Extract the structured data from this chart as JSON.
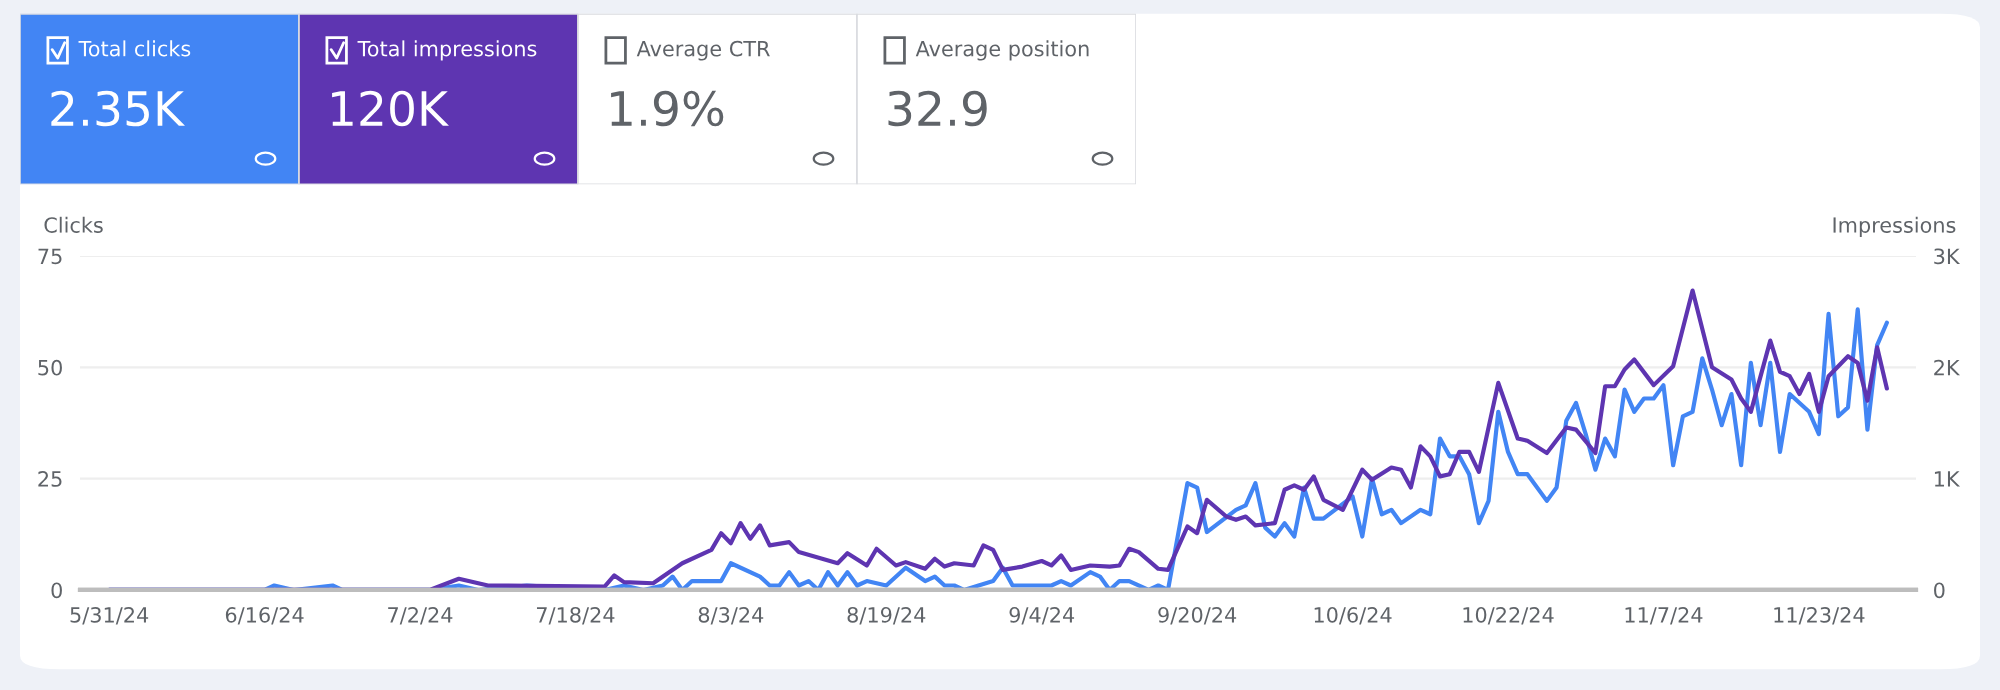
{
  "chart_data": [
    {
      "type": "other",
      "annotations": [
        "Total clicks",
        "2.35K",
        "Total impressions",
        "120K",
        "Average CTR",
        "1.9%",
        "Average position",
        "32.9"
      ],
      "colors": [
        "#4285f4",
        "#5e35b1",
        "#ffffff",
        "#ffffff"
      ]
    },
    {
      "type": "line",
      "ylabel": "Clicks",
      "y2label": "Impressions",
      "series": [
        {
          "color": "#4285f4",
          "x": [
            "2024-05-31",
            "2024-06-16",
            "2024-06-17",
            "2024-06-19",
            "2024-06-23",
            "2024-06-24",
            "2024-07-03",
            "2024-07-06",
            "2024-07-08",
            "2024-07-13",
            "2024-07-21",
            "2024-07-23",
            "2024-07-25",
            "2024-07-27",
            "2024-07-28",
            "2024-07-29",
            "2024-07-30",
            "2024-08-01",
            "2024-08-02",
            "2024-08-03",
            "2024-08-06",
            "2024-08-07",
            "2024-08-08",
            "2024-08-09",
            "2024-08-10",
            "2024-08-11",
            "2024-08-12",
            "2024-08-13",
            "2024-08-14",
            "2024-08-15",
            "2024-08-16",
            "2024-08-17",
            "2024-08-19",
            "2024-08-21",
            "2024-08-23",
            "2024-08-24",
            "2024-08-25",
            "2024-08-26",
            "2024-08-27",
            "2024-08-30",
            "2024-08-31",
            "2024-09-01",
            "2024-09-05",
            "2024-09-06",
            "2024-09-07",
            "2024-09-09",
            "2024-09-10",
            "2024-09-11",
            "2024-09-12",
            "2024-09-13",
            "2024-09-15",
            "2024-09-16",
            "2024-09-17",
            "2024-09-19",
            "2024-09-20",
            "2024-09-21",
            "2024-09-24",
            "2024-09-25",
            "2024-09-26",
            "2024-09-27",
            "2024-09-28",
            "2024-09-29",
            "2024-09-30",
            "2024-10-01",
            "2024-10-02",
            "2024-10-03",
            "2024-10-06",
            "2024-10-07",
            "2024-10-08",
            "2024-10-09",
            "2024-10-10",
            "2024-10-11",
            "2024-10-13",
            "2024-10-14",
            "2024-10-15",
            "2024-10-16",
            "2024-10-17",
            "2024-10-18",
            "2024-10-19",
            "2024-10-20",
            "2024-10-21",
            "2024-10-22",
            "2024-10-23",
            "2024-10-24",
            "2024-10-26",
            "2024-10-27",
            "2024-10-28",
            "2024-10-29",
            "2024-10-30",
            "2024-10-31",
            "2024-11-01",
            "2024-11-02",
            "2024-11-03",
            "2024-11-04",
            "2024-11-05",
            "2024-11-06",
            "2024-11-07",
            "2024-11-08",
            "2024-11-09",
            "2024-11-10",
            "2024-11-11",
            "2024-11-12",
            "2024-11-13",
            "2024-11-14",
            "2024-11-15",
            "2024-11-16",
            "2024-11-17",
            "2024-11-18",
            "2024-11-19",
            "2024-11-20",
            "2024-11-22",
            "2024-11-23",
            "2024-11-24",
            "2024-11-25",
            "2024-11-26",
            "2024-11-27",
            "2024-11-28",
            "2024-11-29",
            "2024-11-30"
          ],
          "values": [
            0,
            0,
            1,
            0,
            1,
            0,
            0,
            1,
            0,
            1,
            0,
            1,
            0,
            1,
            3,
            0,
            2,
            2,
            2,
            6,
            3,
            1,
            1,
            4,
            1,
            2,
            0,
            4,
            1,
            4,
            1,
            2,
            1,
            5,
            2,
            3,
            1,
            1,
            0,
            2,
            5,
            1,
            1,
            2,
            1,
            4,
            3,
            0,
            2,
            2,
            0,
            1,
            0,
            24,
            23,
            13,
            18,
            19,
            24,
            14,
            12,
            15,
            12,
            23,
            16,
            16,
            21,
            12,
            25,
            17,
            18,
            15,
            18,
            17,
            34,
            30,
            30,
            26,
            15,
            20,
            40,
            31,
            26,
            26,
            20,
            23,
            38,
            42,
            35,
            27,
            34,
            30,
            45,
            40,
            43,
            43,
            46,
            28,
            39,
            40,
            52,
            45,
            37,
            44,
            28,
            51,
            37,
            51,
            31,
            44,
            40,
            35,
            62,
            39,
            41,
            63,
            36,
            55,
            60
          ]
        },
        {
          "color": "#5e35b1",
          "axis": "y2",
          "x": [
            "2024-05-31",
            "2024-07-03",
            "2024-07-06",
            "2024-07-09",
            "2024-07-21",
            "2024-07-22",
            "2024-07-23",
            "2024-07-26",
            "2024-07-29",
            "2024-08-01",
            "2024-08-02",
            "2024-08-03",
            "2024-08-04",
            "2024-08-05",
            "2024-08-06",
            "2024-08-07",
            "2024-08-09",
            "2024-08-10",
            "2024-08-14",
            "2024-08-15",
            "2024-08-17",
            "2024-08-18",
            "2024-08-20",
            "2024-08-21",
            "2024-08-23",
            "2024-08-24",
            "2024-08-25",
            "2024-08-26",
            "2024-08-28",
            "2024-08-29",
            "2024-08-30",
            "2024-08-31",
            "2024-09-02",
            "2024-09-04",
            "2024-09-05",
            "2024-09-06",
            "2024-09-07",
            "2024-09-09",
            "2024-09-11",
            "2024-09-12",
            "2024-09-13",
            "2024-09-14",
            "2024-09-16",
            "2024-09-17",
            "2024-09-19",
            "2024-09-20",
            "2024-09-21",
            "2024-09-23",
            "2024-09-24",
            "2024-09-25",
            "2024-09-26",
            "2024-09-28",
            "2024-09-29",
            "2024-09-30",
            "2024-10-01",
            "2024-10-02",
            "2024-10-03",
            "2024-10-05",
            "2024-10-07",
            "2024-10-08",
            "2024-10-10",
            "2024-10-11",
            "2024-10-12",
            "2024-10-13",
            "2024-10-14",
            "2024-10-15",
            "2024-10-16",
            "2024-10-17",
            "2024-10-18",
            "2024-10-19",
            "2024-10-21",
            "2024-10-23",
            "2024-10-24",
            "2024-10-26",
            "2024-10-28",
            "2024-10-29",
            "2024-10-31",
            "2024-11-01",
            "2024-11-02",
            "2024-11-03",
            "2024-11-04",
            "2024-11-06",
            "2024-11-08",
            "2024-11-10",
            "2024-11-12",
            "2024-11-14",
            "2024-11-15",
            "2024-11-16",
            "2024-11-18",
            "2024-11-19",
            "2024-11-20",
            "2024-11-21",
            "2024-11-22",
            "2024-11-23",
            "2024-11-24",
            "2024-11-26",
            "2024-11-27",
            "2024-11-28",
            "2024-11-29",
            "2024-11-30"
          ],
          "values": [
            0,
            0,
            100,
            40,
            30,
            130,
            70,
            60,
            240,
            360,
            510,
            420,
            600,
            460,
            580,
            400,
            430,
            340,
            240,
            330,
            220,
            370,
            220,
            250,
            190,
            280,
            210,
            240,
            220,
            400,
            360,
            180,
            210,
            260,
            220,
            310,
            180,
            220,
            210,
            220,
            370,
            340,
            190,
            180,
            570,
            510,
            810,
            660,
            630,
            660,
            580,
            600,
            900,
            940,
            900,
            1020,
            810,
            720,
            1080,
            990,
            1100,
            1080,
            920,
            1290,
            1200,
            1020,
            1040,
            1240,
            1240,
            1060,
            1860,
            1360,
            1340,
            1230,
            1460,
            1440,
            1230,
            1830,
            1830,
            1980,
            2070,
            1840,
            2010,
            2690,
            2000,
            1890,
            1720,
            1600,
            2240,
            1960,
            1920,
            1760,
            1940,
            1600,
            1920,
            2100,
            2040,
            1700,
            2180,
            1810
          ]
        }
      ],
      "xlim": [
        "2024-05-28",
        "2024-12-03"
      ],
      "xticks": [
        {
          "value": "2024-05-31",
          "label": "5/31/24"
        },
        {
          "value": "2024-06-16",
          "label": "6/16/24"
        },
        {
          "value": "2024-07-02",
          "label": "7/2/24"
        },
        {
          "value": "2024-07-18",
          "label": "7/18/24"
        },
        {
          "value": "2024-08-03",
          "label": "8/3/24"
        },
        {
          "value": "2024-08-19",
          "label": "8/19/24"
        },
        {
          "value": "2024-09-04",
          "label": "9/4/24"
        },
        {
          "value": "2024-09-20",
          "label": "9/20/24"
        },
        {
          "value": "2024-10-06",
          "label": "10/6/24"
        },
        {
          "value": "2024-10-22",
          "label": "10/22/24"
        },
        {
          "value": "2024-11-07",
          "label": "11/7/24"
        },
        {
          "value": "2024-11-23",
          "label": "11/23/24"
        }
      ],
      "ylim": [
        0,
        75
      ],
      "yticks": [
        0,
        25,
        50,
        75
      ],
      "y2lim": [
        0,
        3000
      ],
      "y2ticks": [
        0,
        {
          "value": 1000,
          "label": "1K"
        },
        {
          "value": 2000,
          "label": "2K"
        },
        {
          "value": 3000,
          "label": "3K"
        }
      ],
      "grid": "y",
      "marker": "none",
      "line_style": "solid"
    }
  ]
}
